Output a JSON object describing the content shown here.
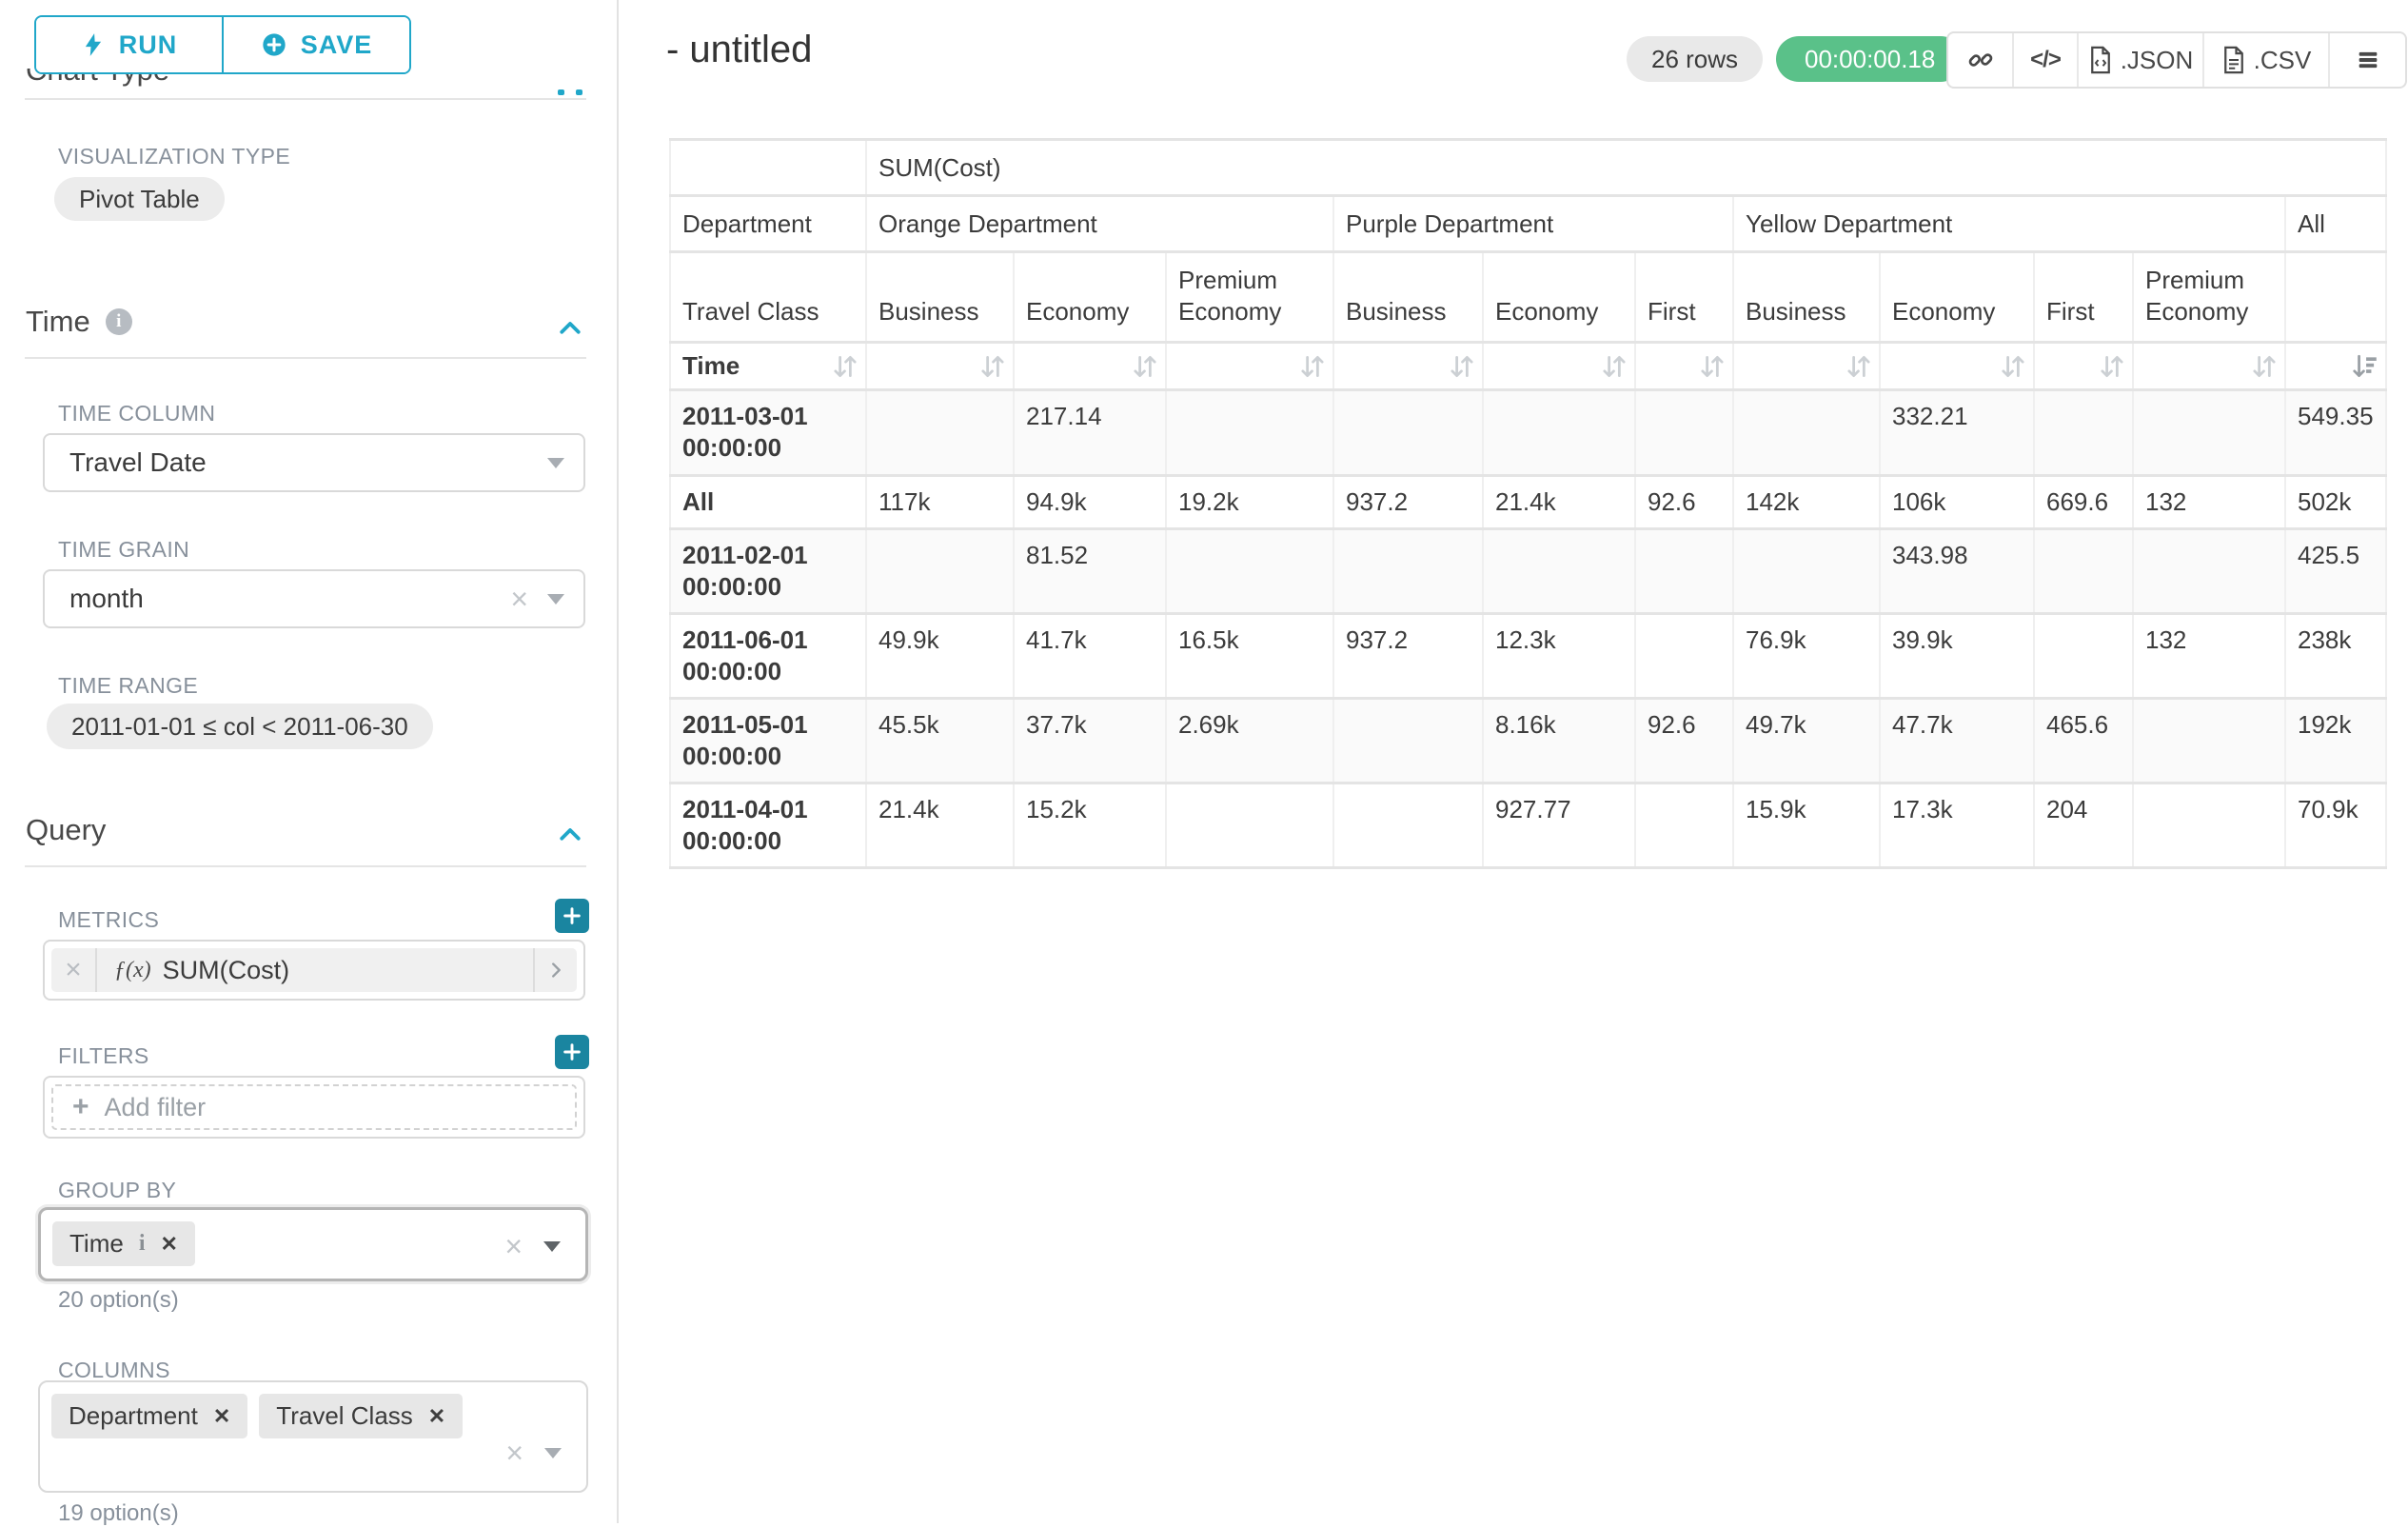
{
  "panel": {
    "run": "RUN",
    "save": "SAVE",
    "chart_type_title": "Chart Type",
    "viz_label": "VISUALIZATION TYPE",
    "viz_value": "Pivot Table",
    "time_title": "Time",
    "time_column_label": "TIME COLUMN",
    "time_column_value": "Travel Date",
    "time_grain_label": "TIME GRAIN",
    "time_grain_value": "month",
    "time_range_label": "TIME RANGE",
    "time_range_value": "2011-01-01 ≤ col < 2011-06-30",
    "query_title": "Query",
    "metrics_label": "METRICS",
    "metric_fn": "ƒ(x)",
    "metric_value": "SUM(Cost)",
    "filters_label": "FILTERS",
    "add_filter": "Add filter",
    "group_by_label": "GROUP BY",
    "group_by_chips": [
      "Time"
    ],
    "group_by_hint": "20 option(s)",
    "columns_label": "COLUMNS",
    "columns_chips": [
      "Department",
      "Travel Class"
    ],
    "columns_hint": "19 option(s)"
  },
  "header": {
    "title": "- untitled",
    "rows_badge": "26 rows",
    "timer": "00:00:00.18",
    "export_json": ".JSON",
    "export_csv": ".CSV"
  },
  "pivot": {
    "metric_header": "SUM(Cost)",
    "col_axis_label": "Department",
    "col_axis2_label": "Travel Class",
    "row_axis_label": "Time",
    "col_groups": [
      {
        "label": "Orange Department",
        "cols": [
          "Business",
          "Economy",
          "Premium Economy"
        ]
      },
      {
        "label": "Purple Department",
        "cols": [
          "Business",
          "Economy",
          "First"
        ]
      },
      {
        "label": "Yellow Department",
        "cols": [
          "Business",
          "Economy",
          "First",
          "Premium Economy"
        ]
      },
      {
        "label": "All",
        "cols": [
          ""
        ]
      }
    ],
    "rows": [
      {
        "key": "2011-03-01 00:00:00",
        "values": [
          "",
          "217.14",
          "",
          "",
          "",
          "",
          "",
          "332.21",
          "",
          "",
          "549.35"
        ]
      },
      {
        "key": "All",
        "values": [
          "117k",
          "94.9k",
          "19.2k",
          "937.2",
          "21.4k",
          "92.6",
          "142k",
          "106k",
          "669.6",
          "132",
          "502k"
        ]
      },
      {
        "key": "2011-02-01 00:00:00",
        "values": [
          "",
          "81.52",
          "",
          "",
          "",
          "",
          "",
          "343.98",
          "",
          "",
          "425.5"
        ]
      },
      {
        "key": "2011-06-01 00:00:00",
        "values": [
          "49.9k",
          "41.7k",
          "16.5k",
          "937.2",
          "12.3k",
          "",
          "76.9k",
          "39.9k",
          "",
          "132",
          "238k"
        ]
      },
      {
        "key": "2011-05-01 00:00:00",
        "values": [
          "45.5k",
          "37.7k",
          "2.69k",
          "",
          "8.16k",
          "92.6",
          "49.7k",
          "47.7k",
          "465.6",
          "",
          "192k"
        ]
      },
      {
        "key": "2011-04-01 00:00:00",
        "values": [
          "21.4k",
          "15.2k",
          "",
          "",
          "927.77",
          "",
          "15.9k",
          "17.3k",
          "204",
          "",
          "70.9k"
        ]
      }
    ],
    "sorted_column": "All",
    "sort_direction": "descending"
  },
  "colors": {
    "primary": "#20a7c9",
    "primary_dark": "#1a85a0",
    "success": "#5ac189"
  },
  "icons": {
    "bolt-icon": "lightning bolt (run)",
    "plus-circle-icon": "circled plus (save)",
    "info-icon": "i in gray circle",
    "chevron-up-icon": "collapse section",
    "caret-down-icon": "select dropdown caret",
    "clear-icon": "×",
    "add-icon": "+",
    "function-icon": "ƒ(x)",
    "chevron-right-icon": "›",
    "remove-icon": "✕",
    "link-icon": "chain link (permalink)",
    "code-icon": "</>",
    "file-json-icon": "document with code",
    "file-csv-icon": "document with lines",
    "menu-icon": "hamburger menu",
    "sort-icon": "up/down arrows",
    "sort-desc-icon": "arrow down with bars"
  }
}
